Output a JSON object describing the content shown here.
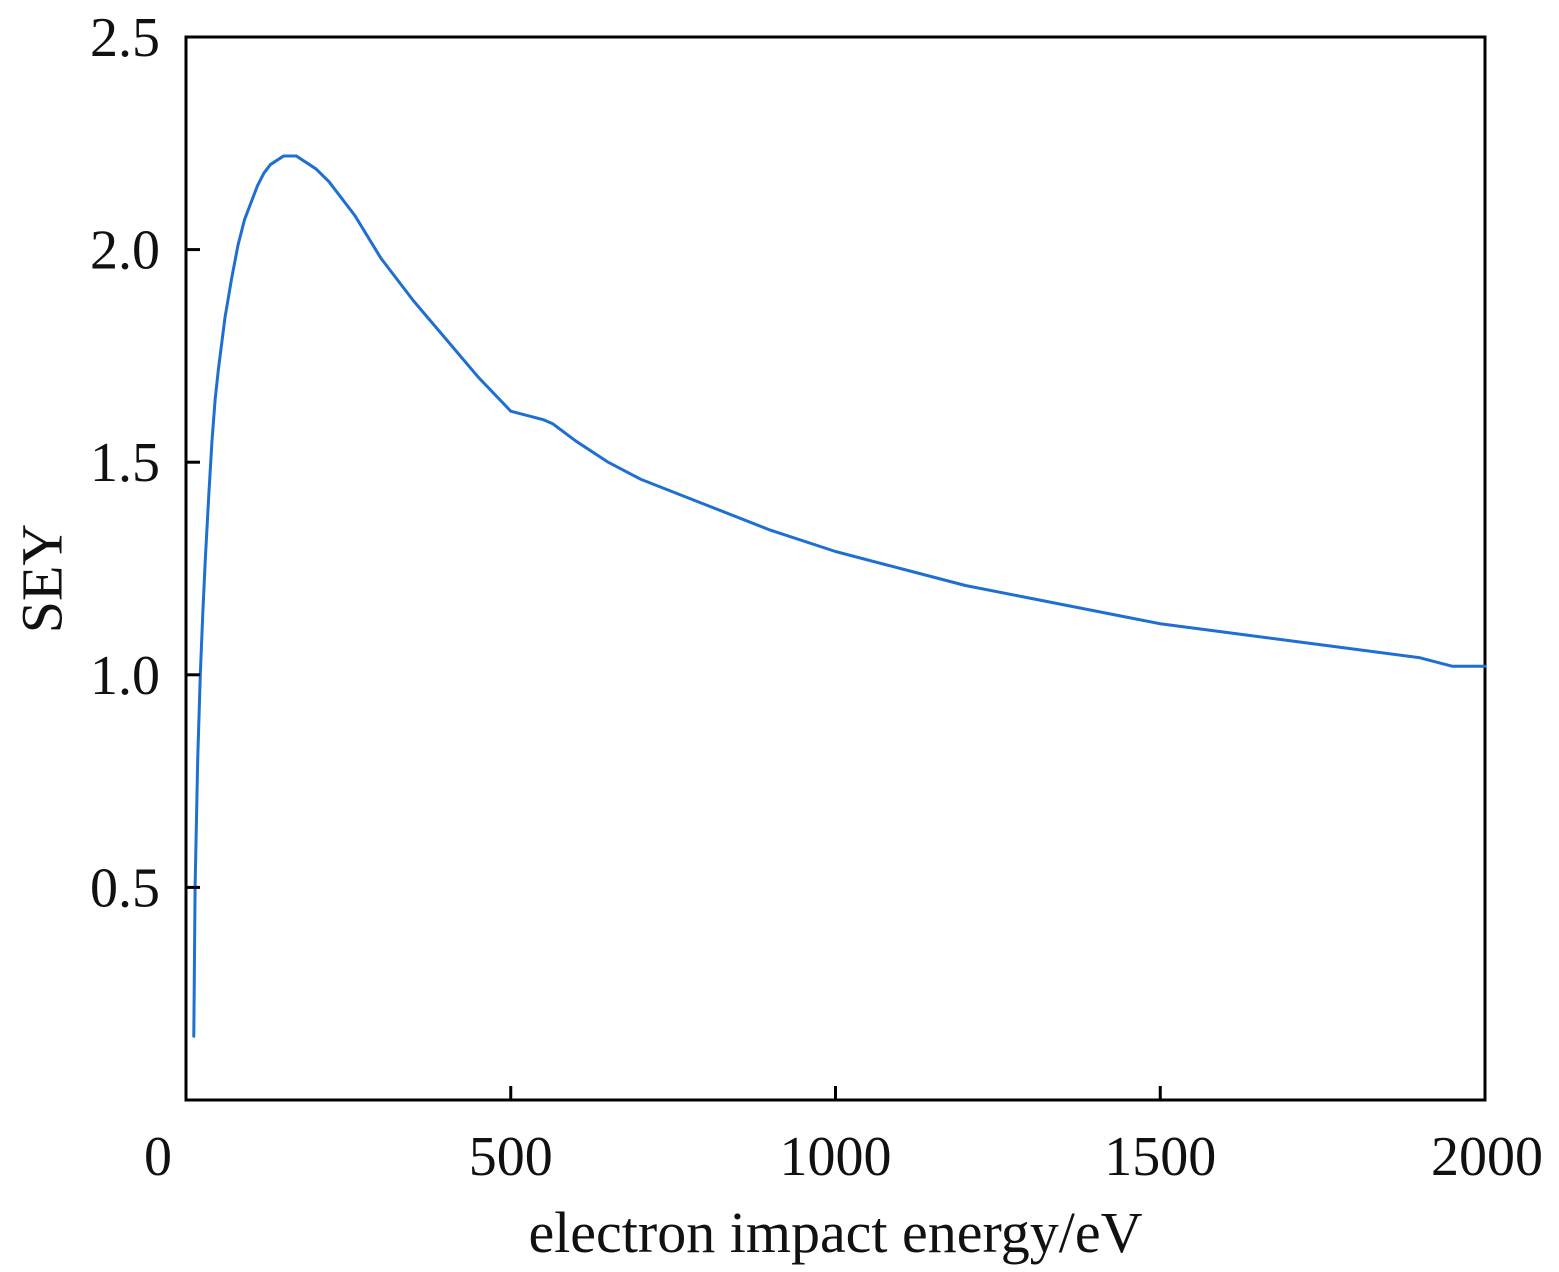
{
  "chart_data": {
    "type": "line",
    "title": "",
    "xlabel": "electron impact energy/eV",
    "ylabel": "SEY",
    "xlim": [
      0,
      2000
    ],
    "ylim": [
      0,
      2.5
    ],
    "grid": false,
    "xticks": [
      0,
      500,
      1000,
      1500,
      2000
    ],
    "xtick_labels": [
      "0",
      "500",
      "1000",
      "1500",
      "2000"
    ],
    "yticks": [
      0.5,
      1.0,
      1.5,
      2.0,
      2.5
    ],
    "ytick_labels": [
      "0.5",
      "1.0",
      "1.5",
      "2.0",
      "2.5"
    ],
    "series": [
      {
        "name": "SEY",
        "color": "#1f6fd1",
        "x": [
          12,
          14,
          18,
          22,
          26,
          30,
          35,
          40,
          45,
          50,
          60,
          70,
          80,
          90,
          100,
          110,
          120,
          130,
          140,
          150,
          160,
          170,
          180,
          190,
          200,
          220,
          240,
          260,
          280,
          300,
          350,
          400,
          450,
          500,
          550,
          565,
          600,
          650,
          700,
          800,
          900,
          1000,
          1100,
          1200,
          1300,
          1400,
          1500,
          1600,
          1700,
          1800,
          1900,
          1950,
          2000
        ],
        "y": [
          0.15,
          0.5,
          0.8,
          1.0,
          1.15,
          1.28,
          1.42,
          1.55,
          1.65,
          1.72,
          1.84,
          1.93,
          2.01,
          2.07,
          2.11,
          2.15,
          2.18,
          2.2,
          2.21,
          2.22,
          2.22,
          2.22,
          2.21,
          2.2,
          2.19,
          2.16,
          2.12,
          2.08,
          2.03,
          1.98,
          1.88,
          1.79,
          1.7,
          1.62,
          1.6,
          1.59,
          1.55,
          1.5,
          1.46,
          1.4,
          1.34,
          1.29,
          1.25,
          1.21,
          1.18,
          1.15,
          1.12,
          1.1,
          1.08,
          1.06,
          1.04,
          1.02,
          1.02
        ]
      }
    ]
  }
}
